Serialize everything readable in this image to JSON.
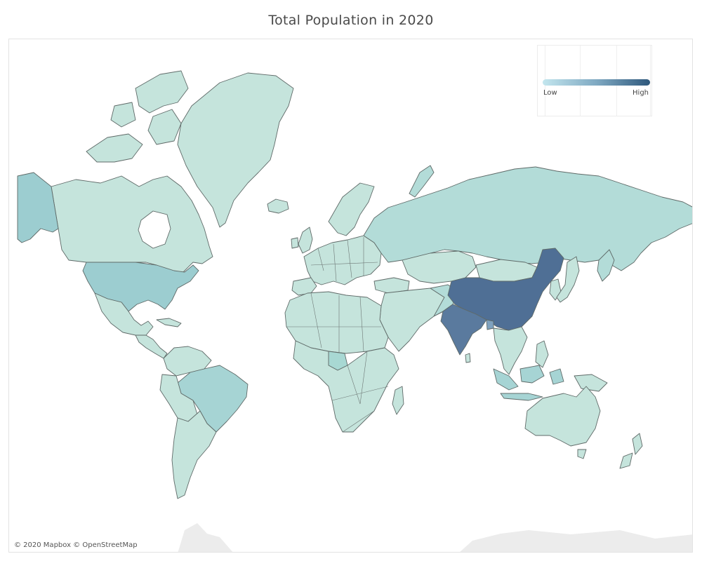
{
  "title": "Total Population in 2020",
  "legend": {
    "low_label": "Low",
    "high_label": "High",
    "color_low": "#c3e6ee",
    "color_mid": "#7fa9c2",
    "color_high": "#2f587c"
  },
  "attribution": "© 2020 Mapbox © OpenStreetMap",
  "colors": {
    "default_land": "#c5e4dc",
    "land_mid": "#a8d5d6",
    "land_high": "#4f6f95",
    "border": "#5f6a68"
  },
  "highlighted_countries": [
    "China",
    "India",
    "United States",
    "Brazil",
    "Russia",
    "Nigeria",
    "Indonesia",
    "Pakistan",
    "Bangladesh"
  ]
}
